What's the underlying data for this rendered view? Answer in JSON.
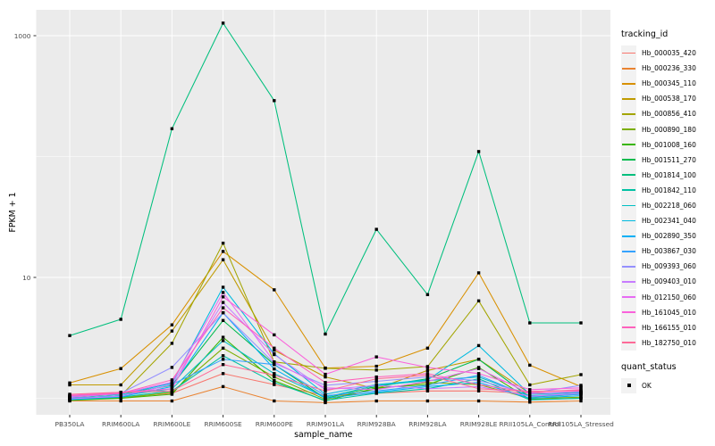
{
  "figure": {
    "background": "#FFFFFF",
    "panel_bg": "#EBEBEB",
    "grid_color": "#FFFFFF",
    "tick_color": "#333333",
    "tick_label_color": "#4D4D4D",
    "axis_title_color": "#000000"
  },
  "legend": {
    "tracking_title": "tracking_id",
    "quant_title": "quant_status",
    "quant_items": [
      {
        "label": "OK",
        "marker": "filled-square",
        "marker_color": "#000000"
      }
    ]
  },
  "chart_data": {
    "type": "line",
    "title": "",
    "xlabel": "sample_name",
    "ylabel": "FPKM + 1",
    "yscale": "log10",
    "ylim": [
      0.68,
      1700
    ],
    "y_major_ticks": [
      1000,
      10
    ],
    "y_major_tick_labels": [
      "1000",
      "10"
    ],
    "y_minor_gridlines": [
      100,
      1
    ],
    "grid": true,
    "legend_position": "right",
    "marker": "filled-square",
    "marker_color": "#000000",
    "categories": [
      "PB350LA",
      "RRIM600LA",
      "RRIM600LE",
      "RRIM600SE",
      "RRIM600PE",
      "RRIM901LA",
      "RRIM928BA",
      "RRIM928LA",
      "RRIM928LE",
      "RRII105LA_Control",
      "RRII105LA_Stressed"
    ],
    "series": [
      {
        "name": "Hb_000035_420",
        "color": "#F8766D",
        "values": [
          1.0,
          1.02,
          1.1,
          1.6,
          1.3,
          1.05,
          1.1,
          1.15,
          1.15,
          1.1,
          1.12
        ]
      },
      {
        "name": "Hb_000236_330",
        "color": "#EA8331",
        "values": [
          0.95,
          0.95,
          0.95,
          1.25,
          0.95,
          0.92,
          0.95,
          0.95,
          0.95,
          0.93,
          0.95
        ]
      },
      {
        "name": "Hb_000345_110",
        "color": "#D89000",
        "values": [
          1.34,
          1.76,
          4.05,
          16.4,
          7.9,
          1.78,
          1.84,
          2.6,
          10.9,
          1.88,
          1.25
        ]
      },
      {
        "name": "Hb_000538_170",
        "color": "#C09B00",
        "values": [
          1.29,
          1.29,
          3.6,
          14.0,
          2.5,
          1.5,
          1.2,
          1.7,
          2.1,
          1.1,
          1.12
        ]
      },
      {
        "name": "Hb_000856_410",
        "color": "#A3A500",
        "values": [
          1.0,
          1.05,
          2.85,
          19.2,
          2.0,
          1.77,
          1.71,
          1.83,
          6.4,
          1.29,
          1.57
        ]
      },
      {
        "name": "Hb_000890_180",
        "color": "#7CAE00",
        "values": [
          0.98,
          1.0,
          1.12,
          2.6,
          1.5,
          0.98,
          1.2,
          1.35,
          1.3,
          1.0,
          1.02
        ]
      },
      {
        "name": "Hb_001008_160",
        "color": "#39B600",
        "values": [
          0.96,
          1.0,
          1.08,
          3.2,
          1.4,
          0.95,
          1.22,
          1.3,
          1.8,
          0.98,
          1.0
        ]
      },
      {
        "name": "Hb_001511_270",
        "color": "#00BB4E",
        "values": [
          1.02,
          1.08,
          1.28,
          4.4,
          1.9,
          1.0,
          1.25,
          1.45,
          2.1,
          1.02,
          1.08
        ]
      },
      {
        "name": "Hb_001814_100",
        "color": "#00BF7D",
        "values": [
          3.3,
          4.5,
          170,
          1270,
          290,
          3.4,
          25.0,
          7.2,
          110,
          4.2,
          4.2
        ]
      },
      {
        "name": "Hb_001842_110",
        "color": "#00C1A3",
        "values": [
          0.97,
          1.02,
          1.15,
          2.25,
          1.35,
          0.96,
          1.1,
          1.2,
          1.45,
          0.97,
          1.0
        ]
      },
      {
        "name": "Hb_002218_060",
        "color": "#00BFC4",
        "values": [
          1.0,
          1.05,
          1.2,
          3.0,
          1.6,
          1.02,
          1.28,
          1.4,
          1.5,
          1.05,
          1.1
        ]
      },
      {
        "name": "Hb_002341_040",
        "color": "#00BAE0",
        "values": [
          1.03,
          1.08,
          1.33,
          8.3,
          2.33,
          1.08,
          1.3,
          1.42,
          2.73,
          1.08,
          1.12
        ]
      },
      {
        "name": "Hb_002890_350",
        "color": "#00B0F6",
        "values": [
          0.98,
          1.03,
          1.25,
          5.1,
          1.75,
          1.0,
          1.12,
          1.25,
          1.35,
          1.0,
          1.05
        ]
      },
      {
        "name": "Hb_003867_030",
        "color": "#35A2FF",
        "values": [
          1.0,
          1.05,
          1.3,
          2.1,
          1.9,
          1.05,
          1.15,
          1.28,
          1.55,
          1.03,
          1.08
        ]
      },
      {
        "name": "Hb_009393_060",
        "color": "#9590FF",
        "values": [
          1.04,
          1.1,
          1.8,
          5.1,
          1.95,
          1.28,
          1.38,
          1.5,
          1.4,
          1.1,
          1.28
        ]
      },
      {
        "name": "Hb_009403_010",
        "color": "#C77CFF",
        "values": [
          0.99,
          1.04,
          1.3,
          6.2,
          2.3,
          1.18,
          1.28,
          1.2,
          1.25,
          1.04,
          1.1
        ]
      },
      {
        "name": "Hb_012150_060",
        "color": "#E76BF3",
        "values": [
          1.02,
          1.09,
          1.36,
          7.5,
          2.0,
          1.22,
          1.18,
          1.38,
          1.76,
          1.09,
          1.14
        ]
      },
      {
        "name": "Hb_161045_010",
        "color": "#FA62DB",
        "values": [
          1.06,
          1.12,
          1.2,
          6.9,
          3.35,
          1.58,
          2.2,
          1.8,
          1.6,
          1.18,
          1.22
        ]
      },
      {
        "name": "Hb_166155_010",
        "color": "#FF62BC",
        "values": [
          1.05,
          1.1,
          1.42,
          5.6,
          2.6,
          1.35,
          1.5,
          1.6,
          1.3,
          1.12,
          1.18
        ]
      },
      {
        "name": "Hb_182750_010",
        "color": "#FF6A98",
        "values": [
          1.08,
          1.12,
          1.15,
          1.9,
          1.55,
          1.15,
          1.45,
          1.55,
          1.2,
          1.14,
          1.16
        ]
      }
    ]
  }
}
